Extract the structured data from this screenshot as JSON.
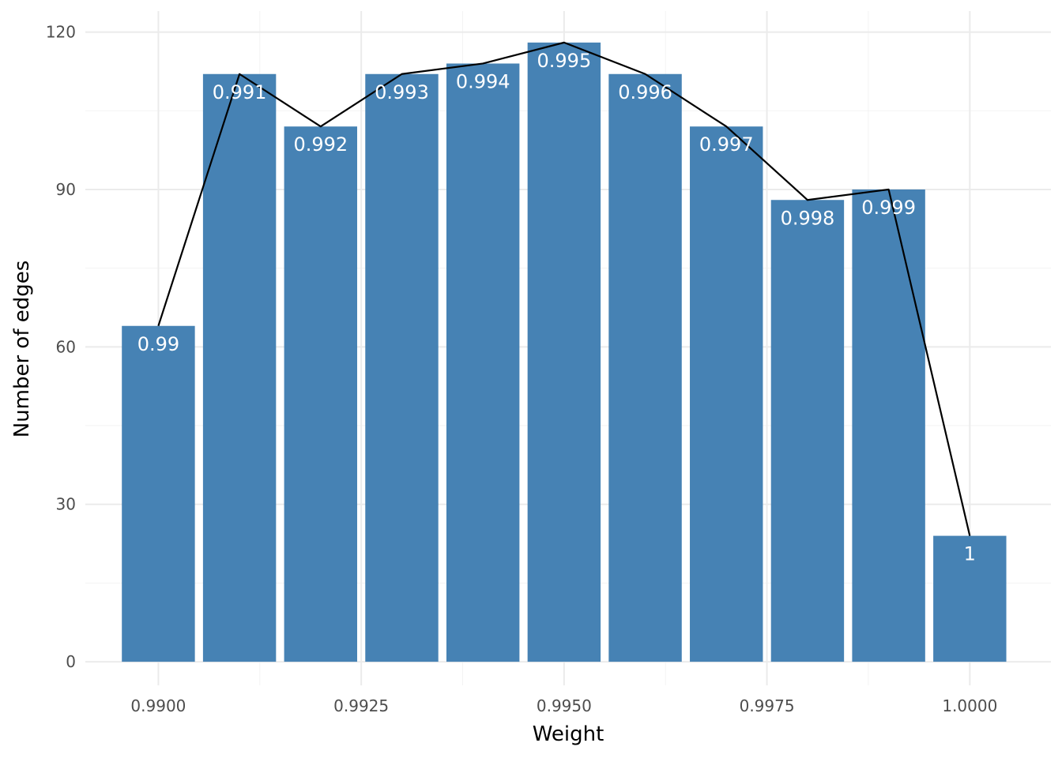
{
  "chart_data": {
    "type": "bar",
    "xlabel": "Weight",
    "ylabel": "Number of edges",
    "xlim": [
      0.9891,
      1.001
    ],
    "ylim": [
      -4.5,
      124
    ],
    "x_ticks": [
      0.99,
      0.9925,
      0.995,
      0.9975,
      1.0
    ],
    "x_tick_labels": [
      "0.9900",
      "0.9925",
      "0.9950",
      "0.9975",
      "1.0000"
    ],
    "y_ticks": [
      0,
      30,
      60,
      90,
      120
    ],
    "y_tick_labels": [
      "0",
      "30",
      "60",
      "90",
      "120"
    ],
    "grid": true,
    "bar_color": "#4682b4",
    "line_color": "#000000",
    "bars": [
      {
        "x": 0.99,
        "value": 64,
        "label": "0.99"
      },
      {
        "x": 0.991,
        "value": 112,
        "label": "0.991"
      },
      {
        "x": 0.992,
        "value": 102,
        "label": "0.992"
      },
      {
        "x": 0.993,
        "value": 112,
        "label": "0.993"
      },
      {
        "x": 0.994,
        "value": 114,
        "label": "0.994"
      },
      {
        "x": 0.995,
        "value": 118,
        "label": "0.995"
      },
      {
        "x": 0.996,
        "value": 112,
        "label": "0.996"
      },
      {
        "x": 0.997,
        "value": 102,
        "label": "0.997"
      },
      {
        "x": 0.998,
        "value": 88,
        "label": "0.998"
      },
      {
        "x": 0.999,
        "value": 90,
        "label": "0.999"
      },
      {
        "x": 1.0,
        "value": 24,
        "label": "1"
      }
    ]
  }
}
